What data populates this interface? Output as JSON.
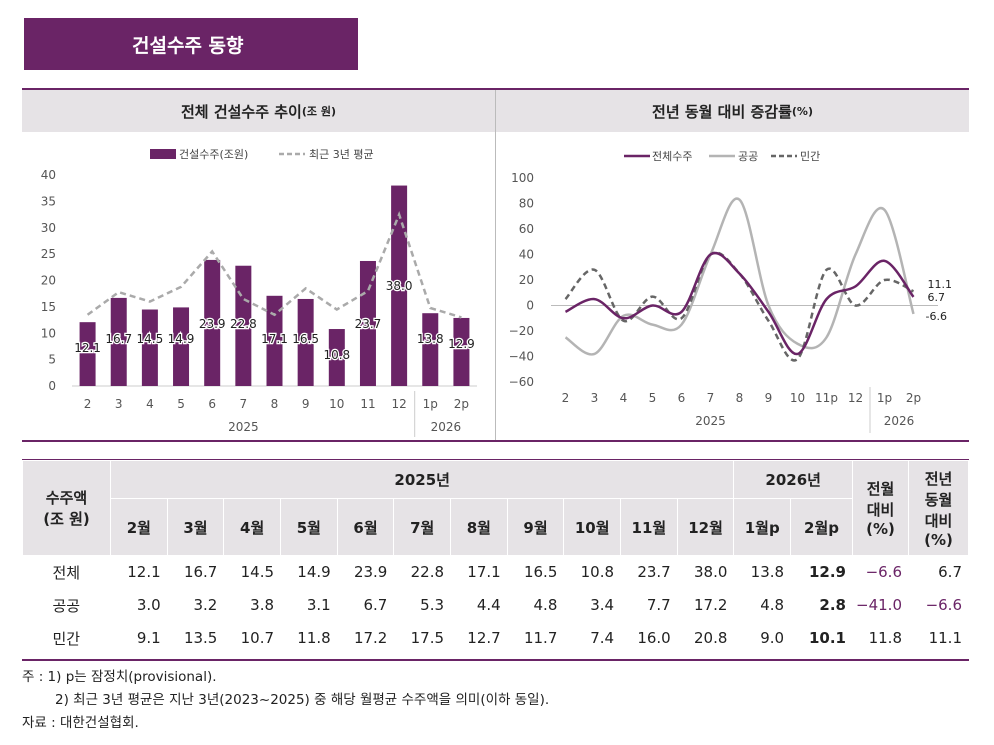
{
  "title": "건설수주 동향",
  "left_panel": {
    "title": "전체 건설수주 추이",
    "unit": "(조 원)"
  },
  "right_panel": {
    "title": "전년 동월 대비 증감률",
    "unit": "(%)"
  },
  "chart_data": [
    {
      "type": "bar",
      "legend": [
        "건설수주(조원)",
        "최근 3년 평균"
      ],
      "categories": [
        "2",
        "3",
        "4",
        "5",
        "6",
        "7",
        "8",
        "9",
        "10",
        "11",
        "12",
        "1p",
        "2p"
      ],
      "year_groups": [
        {
          "label": "2025",
          "from": 0,
          "to": 10
        },
        {
          "label": "2026",
          "from": 11,
          "to": 12
        }
      ],
      "series": [
        {
          "name": "건설수주(조원)",
          "type": "bar",
          "color": "#6a2466",
          "values": [
            12.1,
            16.7,
            14.5,
            14.9,
            23.9,
            22.8,
            17.1,
            16.5,
            10.8,
            23.7,
            38.0,
            13.8,
            12.9
          ],
          "labels": [
            "12.1",
            "16.7",
            "14.5",
            "14.9",
            "23.9",
            "22.8",
            "17.1",
            "16.5",
            "10.8",
            "23.7",
            "38.0",
            "13.8",
            "12.9"
          ]
        },
        {
          "name": "최근 3년 평균",
          "type": "line",
          "style": "dashed",
          "color": "#aaaaaa",
          "values": [
            13.5,
            17.8,
            16.0,
            18.8,
            25.5,
            16.5,
            13.5,
            18.5,
            14.5,
            18.0,
            32.5,
            14.8,
            13.0
          ]
        }
      ],
      "ylim": [
        0,
        40
      ],
      "yticks": [
        0,
        5,
        10,
        15,
        20,
        25,
        30,
        35,
        40
      ],
      "grid": false,
      "legend_position": "top"
    },
    {
      "type": "line",
      "legend": [
        "전체수주",
        "공공",
        "민간"
      ],
      "categories": [
        "2",
        "3",
        "4",
        "5",
        "6",
        "7",
        "8",
        "9",
        "10",
        "11p",
        "12",
        "1p",
        "2p"
      ],
      "year_groups": [
        {
          "label": "2025",
          "from": 0,
          "to": 10
        },
        {
          "label": "2026",
          "from": 11,
          "to": 12
        }
      ],
      "series": [
        {
          "name": "전체수주",
          "color": "#6a2466",
          "style": "solid",
          "values": [
            -5,
            5,
            -10,
            0,
            -5,
            40,
            25,
            -5,
            -38,
            5,
            15,
            35,
            6.7
          ]
        },
        {
          "name": "공공",
          "color": "#b4b4b4",
          "style": "solid",
          "values": [
            -25,
            -38,
            -8,
            -15,
            -15,
            40,
            83,
            0,
            -30,
            -25,
            40,
            75,
            -6.6
          ]
        },
        {
          "name": "민간",
          "color": "#666666",
          "style": "dashed",
          "values": [
            5,
            28,
            -12,
            7,
            -10,
            40,
            25,
            -12,
            -42,
            28,
            0,
            20,
            11.1
          ]
        }
      ],
      "end_labels": [
        "11.1",
        "6.7",
        "-6.6"
      ],
      "ylim": [
        -60,
        100
      ],
      "yticks": [
        -60,
        -40,
        -20,
        0,
        20,
        40,
        60,
        80,
        100
      ],
      "grid": false,
      "legend_position": "top"
    }
  ],
  "table": {
    "corner": [
      "수주액",
      "(조 원)"
    ],
    "year_2025": "2025년",
    "year_2026": "2026년",
    "col_mom": [
      "전월",
      "대비",
      "(%)"
    ],
    "col_yoy": [
      "전년",
      "동월",
      "대비",
      "(%)"
    ],
    "months": [
      "2월",
      "3월",
      "4월",
      "5월",
      "6월",
      "7월",
      "8월",
      "9월",
      "10월",
      "11월",
      "12월",
      "1월p",
      "2월p"
    ],
    "rows": [
      {
        "label": "전체",
        "values": [
          "12.1",
          "16.7",
          "14.5",
          "14.9",
          "23.9",
          "22.8",
          "17.1",
          "16.5",
          "10.8",
          "23.7",
          "38.0",
          "13.8",
          "12.9"
        ],
        "mom": "−6.6",
        "yoy": "6.7"
      },
      {
        "label": "공공",
        "values": [
          "3.0",
          "3.2",
          "3.8",
          "3.1",
          "6.7",
          "5.3",
          "4.4",
          "4.8",
          "3.4",
          "7.7",
          "17.2",
          "4.8",
          "2.8"
        ],
        "mom": "−41.0",
        "yoy": "−6.6"
      },
      {
        "label": "민간",
        "values": [
          "9.1",
          "13.5",
          "10.7",
          "11.8",
          "17.2",
          "17.5",
          "12.7",
          "11.7",
          "7.4",
          "16.0",
          "20.8",
          "9.0",
          "10.1"
        ],
        "mom": "11.8",
        "yoy": "11.1"
      }
    ]
  },
  "notes": [
    "주 : 1) p는 잠정치(provisional).",
    "2) 최근 3년 평균은 지난 3년(2023~2025) 중 해당 월평균 수주액을 의미(이하 동일).",
    "자료 : 대한건설협회."
  ]
}
